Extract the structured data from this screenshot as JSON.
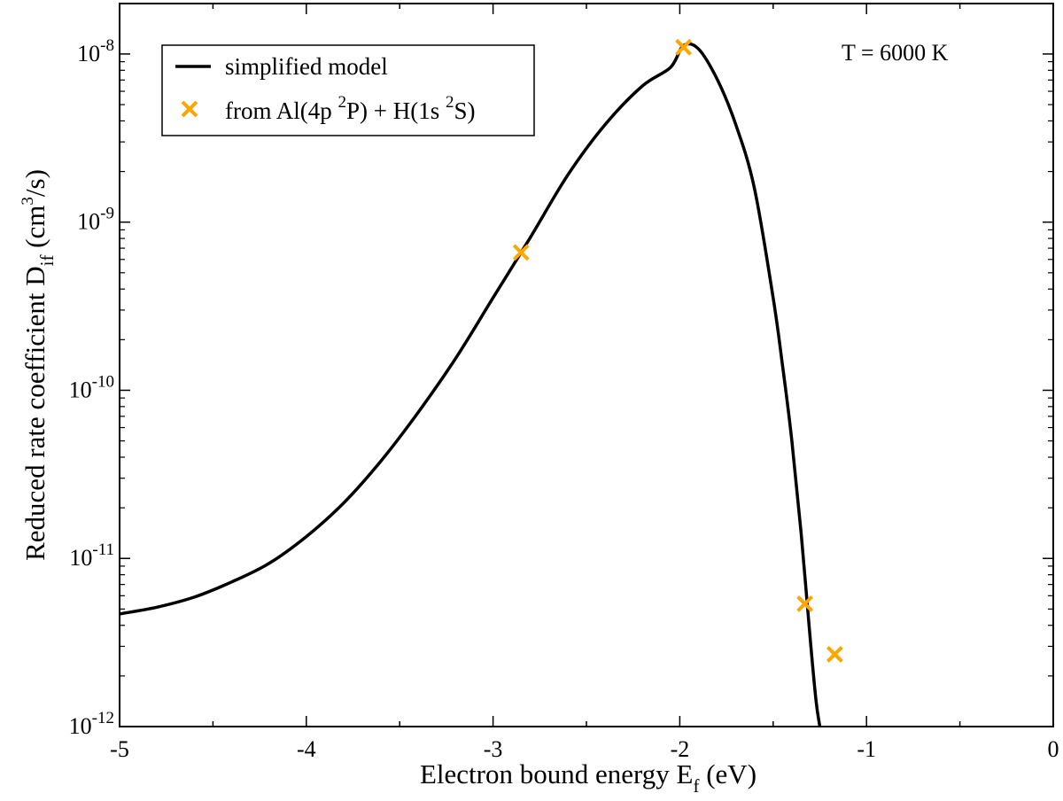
{
  "chart_data": {
    "type": "line",
    "title": "",
    "xlabel_main": "Electron bound energy E",
    "xlabel_sub": "f",
    "xlabel_unit": " (eV)",
    "ylabel_main": "Reduced rate coefficient D",
    "ylabel_sub": "if",
    "ylabel_unit_a": " (cm",
    "ylabel_unit_sup": "3",
    "ylabel_unit_b": "/s)",
    "annotation": "T = 6000 K",
    "xlim": [
      -5,
      0
    ],
    "ylim_log10": [
      -12,
      -7.7
    ],
    "y_scale": "log",
    "x_ticks": [
      {
        "value": -5,
        "label": "-5"
      },
      {
        "value": -4,
        "label": "-4"
      },
      {
        "value": -3,
        "label": "-3"
      },
      {
        "value": -2,
        "label": "-2"
      },
      {
        "value": -1,
        "label": "-1"
      },
      {
        "value": 0,
        "label": "0"
      }
    ],
    "y_ticks": [
      {
        "exp": -12,
        "base": "10",
        "sup": "-12"
      },
      {
        "exp": -11,
        "base": "10",
        "sup": "-11"
      },
      {
        "exp": -10,
        "base": "10",
        "sup": "-10"
      },
      {
        "exp": -9,
        "base": "10",
        "sup": "-9"
      },
      {
        "exp": -8,
        "base": "10",
        "sup": "-8"
      }
    ],
    "legend": {
      "position": "top-left",
      "entries": [
        {
          "kind": "line",
          "text": "simplified model"
        },
        {
          "kind": "marker",
          "parts": [
            "from Al(4p ",
            "2",
            "P) + H(1s ",
            "2",
            "S)"
          ]
        }
      ]
    },
    "series": [
      {
        "name": "simplified model",
        "style": "line",
        "color": "#000000",
        "x": [
          -5.0,
          -4.8,
          -4.6,
          -4.4,
          -4.2,
          -4.0,
          -3.8,
          -3.6,
          -3.4,
          -3.2,
          -3.0,
          -2.8,
          -2.6,
          -2.4,
          -2.2,
          -2.05,
          -1.98,
          -1.9,
          -1.8,
          -1.7,
          -1.6,
          -1.5,
          -1.45,
          -1.4,
          -1.35,
          -1.3,
          -1.27,
          -1.25
        ],
        "log10_y": [
          -11.33,
          -11.29,
          -11.23,
          -11.14,
          -11.03,
          -10.87,
          -10.67,
          -10.42,
          -10.13,
          -9.81,
          -9.45,
          -9.09,
          -8.72,
          -8.42,
          -8.19,
          -8.08,
          -7.95,
          -7.97,
          -8.15,
          -8.42,
          -8.8,
          -9.45,
          -9.85,
          -10.3,
          -10.85,
          -11.5,
          -11.85,
          -12.0
        ]
      },
      {
        "name": "from Al(4p 2P) + H(1s 2S)",
        "style": "marker",
        "color": "#FFA500",
        "x": [
          -2.85,
          -1.98,
          -1.33,
          -1.17
        ],
        "log10_y": [
          -9.18,
          -7.96,
          -11.27,
          -11.57
        ]
      }
    ]
  }
}
